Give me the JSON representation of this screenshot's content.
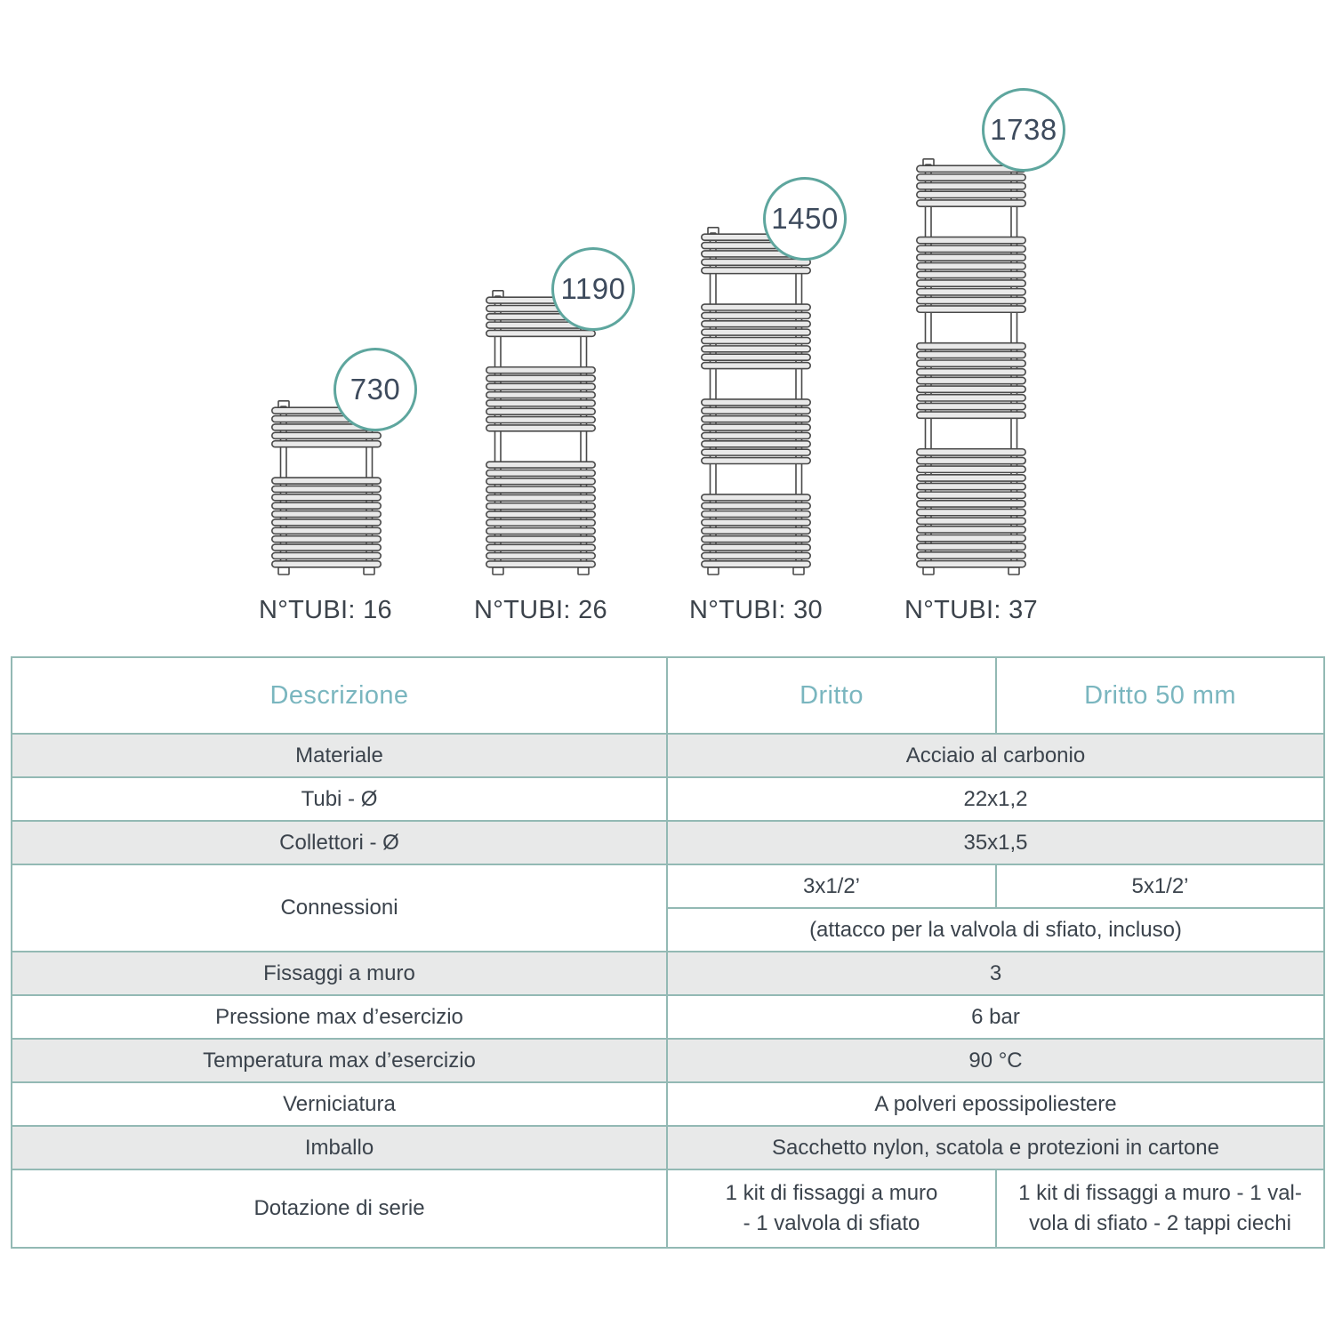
{
  "diagram": {
    "radiators": [
      {
        "height_mm": 730,
        "tubes_label": "N°TUBI: 16",
        "groups": [
          5,
          11
        ]
      },
      {
        "height_mm": 1190,
        "tubes_label": "N°TUBI: 26",
        "groups": [
          5,
          8,
          13
        ]
      },
      {
        "height_mm": 1450,
        "tubes_label": "N°TUBI: 30",
        "groups": [
          5,
          8,
          8,
          9
        ]
      },
      {
        "height_mm": 1738,
        "tubes_label": "N°TUBI: 37",
        "groups": [
          5,
          9,
          9,
          14
        ]
      }
    ]
  },
  "table": {
    "header": {
      "descrizione": "Descrizione",
      "dritto": "Dritto",
      "dritto50": "Dritto 50 mm"
    },
    "rows": {
      "materiale": {
        "label": "Materiale",
        "value": "Acciaio al carbonio"
      },
      "tubi": {
        "label": "Tubi - Ø",
        "value": "22x1,2"
      },
      "collettori": {
        "label": "Collettori - Ø",
        "value": "35x1,5"
      },
      "connessioni": {
        "label": "Connessioni",
        "dritto": "3x1/2’",
        "dritto50": "5x1/2’",
        "note": "(attacco per la valvola di sfiato, incluso)"
      },
      "fissaggi": {
        "label": "Fissaggi a muro",
        "value": "3"
      },
      "pressione": {
        "label": "Pressione max d’esercizio",
        "value": "6 bar"
      },
      "temperatura": {
        "label": "Temperatura max d’esercizio",
        "value": "90 °C"
      },
      "verniciatura": {
        "label": "Verniciatura",
        "value": "A polveri epossipoliestere"
      },
      "imballo": {
        "label": "Imballo",
        "value": "Sacchetto nylon, scatola e protezioni in cartone"
      },
      "dotazione": {
        "label": "Dotazione di serie",
        "dritto_line1": "1 kit di fissaggi a muro",
        "dritto_line2": "- 1 valvola di sfiato",
        "dritto50_line1": "1 kit di fissaggi a muro - 1 val-",
        "dritto50_line2": "vola di sfiato  - 2 tappi ciechi"
      }
    }
  },
  "colors": {
    "accent_teal": "#5ea69e",
    "table_border_teal": "#93b9b4",
    "header_text_teal": "#7ab6bf",
    "text_dark": "#3b434c",
    "row_shade_gray": "#e8e9e9",
    "drawing_stroke": "#4a4a4a"
  }
}
